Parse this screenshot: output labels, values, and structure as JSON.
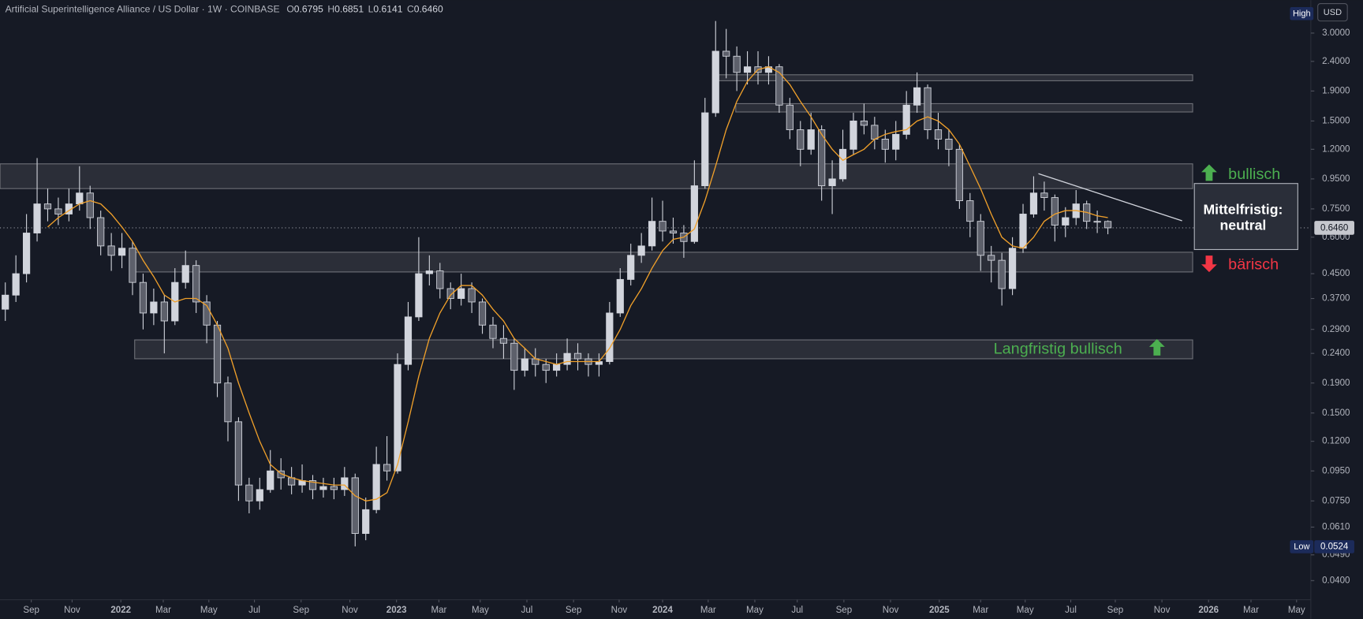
{
  "chart_data": {
    "type": "candlestick",
    "title": "Artificial Superintelligence Alliance / US Dollar · 1W · COINBASE",
    "ohlc": [
      {
        "name": "O",
        "label": "0.6795"
      },
      {
        "name": "H",
        "label": "0.6851"
      },
      {
        "name": "L",
        "label": "0.6141"
      },
      {
        "name": "C",
        "label": "0.6460"
      }
    ],
    "currency": "USD",
    "high_marker": "High",
    "low_marker": {
      "name": "Low",
      "value": 0.0524,
      "label": "0.0524"
    },
    "last_price": {
      "value": 0.646,
      "label": "0.6460"
    },
    "up_color": "#d1d4dc",
    "down_color": "#5d606b",
    "log_scale": true,
    "grid": false,
    "xlim": [
      0,
      123.4
    ],
    "ylim": [
      0.0344,
      3.89
    ],
    "xticks": [
      {
        "value": 2.95,
        "label": "Sep"
      },
      {
        "value": 6.8,
        "label": "Nov"
      },
      {
        "value": 11.4,
        "label": "2022"
      },
      {
        "value": 15.4,
        "label": "Mar"
      },
      {
        "value": 19.7,
        "label": "May"
      },
      {
        "value": 24.0,
        "label": "Jul"
      },
      {
        "value": 28.4,
        "label": "Sep"
      },
      {
        "value": 33.0,
        "label": "Nov"
      },
      {
        "value": 37.4,
        "label": "2023"
      },
      {
        "value": 41.4,
        "label": "Mar"
      },
      {
        "value": 45.3,
        "label": "May"
      },
      {
        "value": 49.7,
        "label": "Jul"
      },
      {
        "value": 54.1,
        "label": "Sep"
      },
      {
        "value": 58.4,
        "label": "Nov"
      },
      {
        "value": 62.5,
        "label": "2024"
      },
      {
        "value": 66.8,
        "label": "Mar"
      },
      {
        "value": 71.2,
        "label": "May"
      },
      {
        "value": 75.2,
        "label": "Jul"
      },
      {
        "value": 79.6,
        "label": "Sep"
      },
      {
        "value": 84.0,
        "label": "Nov"
      },
      {
        "value": 88.6,
        "label": "2025"
      },
      {
        "value": 92.5,
        "label": "Mar"
      },
      {
        "value": 96.7,
        "label": "May"
      },
      {
        "value": 101.0,
        "label": "Jul"
      },
      {
        "value": 105.2,
        "label": "Sep"
      },
      {
        "value": 109.6,
        "label": "Nov"
      },
      {
        "value": 114.0,
        "label": "2026"
      },
      {
        "value": 118.0,
        "label": "Mar"
      },
      {
        "value": 122.3,
        "label": "May"
      }
    ],
    "yticks": [
      {
        "value": 3,
        "label": "3.0000"
      },
      {
        "value": 2.4,
        "label": "2.4000"
      },
      {
        "value": 1.9,
        "label": "1.9000"
      },
      {
        "value": 1.5,
        "label": "1.5000"
      },
      {
        "value": 1.2,
        "label": "1.2000"
      },
      {
        "value": 0.95,
        "label": "0.9500"
      },
      {
        "value": 0.75,
        "label": "0.7500"
      },
      {
        "value": 0.6,
        "label": "0.6000"
      },
      {
        "value": 0.45,
        "label": "0.4500"
      },
      {
        "value": 0.37,
        "label": "0.3700"
      },
      {
        "value": 0.29,
        "label": "0.2900"
      },
      {
        "value": 0.24,
        "label": "0.2400"
      },
      {
        "value": 0.19,
        "label": "0.1900"
      },
      {
        "value": 0.15,
        "label": "0.1500"
      },
      {
        "value": 0.12,
        "label": "0.1200"
      },
      {
        "value": 0.095,
        "label": "0.0950"
      },
      {
        "value": 0.075,
        "label": "0.0750"
      },
      {
        "value": 0.061,
        "label": "0.0610"
      },
      {
        "value": 0.049,
        "label": "0.0490"
      },
      {
        "value": 0.04,
        "label": "0.0400"
      }
    ],
    "open": [
      0.34,
      0.38,
      0.45,
      0.62,
      0.78,
      0.75,
      0.72,
      0.78,
      0.85,
      0.7,
      0.56,
      0.52,
      0.55,
      0.42,
      0.33,
      0.36,
      0.31,
      0.42,
      0.48,
      0.36,
      0.3,
      0.19,
      0.14,
      0.085,
      0.075,
      0.082,
      0.095,
      0.09,
      0.085,
      0.088,
      0.082,
      0.084,
      0.082,
      0.09,
      0.058,
      0.07,
      0.1,
      0.095,
      0.22,
      0.32,
      0.45,
      0.46,
      0.4,
      0.37,
      0.4,
      0.36,
      0.3,
      0.27,
      0.26,
      0.21,
      0.23,
      0.22,
      0.21,
      0.22,
      0.24,
      0.23,
      0.22,
      0.225,
      0.33,
      0.43,
      0.52,
      0.56,
      0.68,
      0.63,
      0.62,
      0.58,
      0.9,
      1.6,
      2.6,
      2.5,
      2.2,
      2.3,
      2.2,
      2.3,
      1.7,
      1.4,
      1.2,
      1.4,
      0.9,
      0.95,
      1.2,
      1.5,
      1.45,
      1.3,
      1.2,
      1.35,
      1.7,
      1.95,
      1.4,
      1.3,
      1.2,
      0.8,
      0.68,
      0.52,
      0.5,
      0.4,
      0.55,
      0.72,
      0.85,
      0.82,
      0.66,
      0.7,
      0.78,
      0.68,
      0.6795
    ],
    "high": [
      0.42,
      0.52,
      0.72,
      1.12,
      0.88,
      0.82,
      0.88,
      1.05,
      0.9,
      0.74,
      0.62,
      0.62,
      0.58,
      0.45,
      0.4,
      0.38,
      0.47,
      0.54,
      0.5,
      0.38,
      0.31,
      0.2,
      0.145,
      0.09,
      0.09,
      0.112,
      0.105,
      0.098,
      0.1,
      0.092,
      0.09,
      0.09,
      0.098,
      0.093,
      0.077,
      0.115,
      0.125,
      0.24,
      0.36,
      0.6,
      0.52,
      0.49,
      0.42,
      0.45,
      0.42,
      0.37,
      0.32,
      0.3,
      0.27,
      0.25,
      0.25,
      0.23,
      0.24,
      0.27,
      0.26,
      0.24,
      0.24,
      0.36,
      0.47,
      0.57,
      0.62,
      0.82,
      0.8,
      0.7,
      0.66,
      1.1,
      1.8,
      3.3,
      3.1,
      2.7,
      2.6,
      2.6,
      2.5,
      2.35,
      1.8,
      1.5,
      1.6,
      1.45,
      1.1,
      1.4,
      1.6,
      1.72,
      1.55,
      1.4,
      1.5,
      1.9,
      2.2,
      2.0,
      1.6,
      1.4,
      1.25,
      0.85,
      0.72,
      0.56,
      0.53,
      0.6,
      0.78,
      0.97,
      0.93,
      0.84,
      0.76,
      0.87,
      0.8,
      0.74,
      0.6851
    ],
    "low": [
      0.31,
      0.36,
      0.42,
      0.58,
      0.68,
      0.66,
      0.68,
      0.74,
      0.64,
      0.52,
      0.46,
      0.47,
      0.38,
      0.29,
      0.3,
      0.24,
      0.3,
      0.4,
      0.33,
      0.26,
      0.17,
      0.12,
      0.075,
      0.068,
      0.07,
      0.08,
      0.082,
      0.079,
      0.08,
      0.076,
      0.077,
      0.076,
      0.078,
      0.0524,
      0.055,
      0.068,
      0.088,
      0.093,
      0.21,
      0.31,
      0.41,
      0.37,
      0.34,
      0.35,
      0.33,
      0.28,
      0.25,
      0.23,
      0.18,
      0.2,
      0.2,
      0.19,
      0.2,
      0.21,
      0.21,
      0.2,
      0.2,
      0.22,
      0.32,
      0.41,
      0.49,
      0.54,
      0.58,
      0.57,
      0.51,
      0.57,
      0.88,
      1.55,
      2.1,
      1.9,
      2.0,
      2.0,
      2.0,
      1.6,
      1.3,
      1.05,
      1.15,
      0.8,
      0.72,
      0.93,
      1.15,
      1.35,
      1.2,
      1.08,
      1.1,
      1.3,
      1.6,
      1.3,
      1.2,
      1.05,
      0.75,
      0.6,
      0.46,
      0.42,
      0.35,
      0.38,
      0.53,
      0.7,
      0.74,
      0.58,
      0.6,
      0.66,
      0.64,
      0.62,
      0.6141
    ],
    "close": [
      0.38,
      0.45,
      0.62,
      0.78,
      0.75,
      0.72,
      0.78,
      0.85,
      0.7,
      0.56,
      0.52,
      0.55,
      0.42,
      0.33,
      0.36,
      0.31,
      0.42,
      0.48,
      0.36,
      0.3,
      0.19,
      0.14,
      0.085,
      0.075,
      0.082,
      0.095,
      0.09,
      0.085,
      0.088,
      0.082,
      0.084,
      0.082,
      0.09,
      0.058,
      0.07,
      0.1,
      0.095,
      0.22,
      0.32,
      0.45,
      0.46,
      0.4,
      0.37,
      0.4,
      0.36,
      0.3,
      0.27,
      0.26,
      0.21,
      0.23,
      0.22,
      0.21,
      0.22,
      0.24,
      0.23,
      0.22,
      0.225,
      0.33,
      0.43,
      0.52,
      0.56,
      0.68,
      0.63,
      0.62,
      0.58,
      0.9,
      1.6,
      2.6,
      2.5,
      2.2,
      2.3,
      2.2,
      2.3,
      1.7,
      1.4,
      1.2,
      1.4,
      0.9,
      0.95,
      1.2,
      1.5,
      1.45,
      1.3,
      1.2,
      1.35,
      1.7,
      1.95,
      1.4,
      1.3,
      1.2,
      0.8,
      0.68,
      0.52,
      0.5,
      0.4,
      0.55,
      0.72,
      0.85,
      0.82,
      0.66,
      0.7,
      0.78,
      0.68,
      0.6795,
      0.646
    ],
    "ma": {
      "color": "#f0a02a",
      "values": [
        null,
        null,
        null,
        null,
        0.65,
        0.7,
        0.74,
        0.78,
        0.8,
        0.78,
        0.72,
        0.65,
        0.58,
        0.5,
        0.44,
        0.38,
        0.36,
        0.37,
        0.37,
        0.35,
        0.3,
        0.25,
        0.19,
        0.15,
        0.12,
        0.1,
        0.093,
        0.09,
        0.088,
        0.087,
        0.086,
        0.085,
        0.085,
        0.078,
        0.075,
        0.076,
        0.08,
        0.1,
        0.14,
        0.2,
        0.27,
        0.33,
        0.38,
        0.41,
        0.41,
        0.38,
        0.34,
        0.31,
        0.27,
        0.25,
        0.23,
        0.225,
        0.22,
        0.225,
        0.225,
        0.225,
        0.225,
        0.25,
        0.29,
        0.35,
        0.4,
        0.47,
        0.54,
        0.59,
        0.6,
        0.64,
        0.8,
        1.05,
        1.4,
        1.75,
        2.05,
        2.25,
        2.3,
        2.2,
        2.0,
        1.75,
        1.55,
        1.35,
        1.2,
        1.1,
        1.15,
        1.2,
        1.3,
        1.35,
        1.38,
        1.4,
        1.5,
        1.55,
        1.5,
        1.4,
        1.25,
        1.05,
        0.88,
        0.72,
        0.6,
        0.56,
        0.55,
        0.6,
        0.68,
        0.72,
        0.74,
        0.74,
        0.73,
        0.71,
        0.7
      ]
    },
    "zones": [
      {
        "x": [
          0,
          112.5
        ],
        "y": [
          0.88,
          1.07
        ]
      },
      {
        "x": [
          12.7,
          112.5
        ],
        "y": [
          0.456,
          0.533
        ]
      },
      {
        "x": [
          12.7,
          112.5
        ],
        "y": [
          0.23,
          0.267
        ]
      },
      {
        "x": [
          67.8,
          112.5
        ],
        "y": [
          2.06,
          2.16
        ]
      },
      {
        "x": [
          69.4,
          112.5
        ],
        "y": [
          1.61,
          1.72
        ]
      }
    ],
    "trendline": {
      "x": [
        97.95,
        111.5
      ],
      "y": [
        0.99,
        0.683
      ]
    },
    "annotations": {
      "bullish": "bullisch",
      "neutral_1": "Mittelfristig:",
      "neutral_2": "neutral",
      "bearish": "bärisch",
      "long_term": "Langfristig bullisch"
    }
  }
}
